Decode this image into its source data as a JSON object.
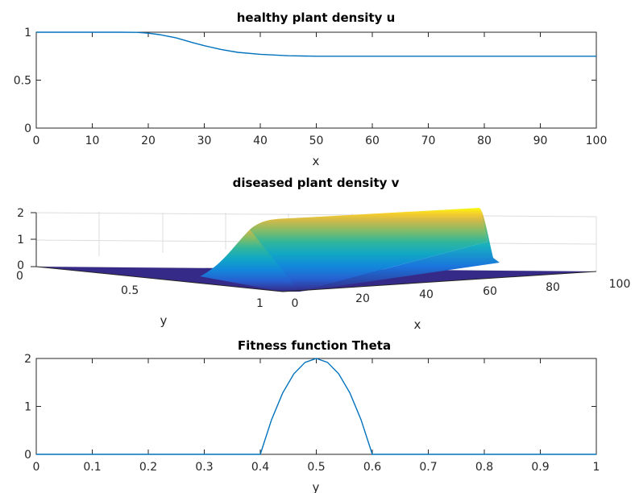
{
  "chart_data": [
    {
      "type": "line",
      "title": "healthy plant density u",
      "xlabel": "x",
      "ylabel": "",
      "xlim": [
        0,
        100
      ],
      "ylim": [
        0,
        1
      ],
      "xticks": [
        "0",
        "10",
        "20",
        "30",
        "40",
        "50",
        "60",
        "70",
        "80",
        "90",
        "100"
      ],
      "yticks": [
        "0",
        "0.5",
        "1"
      ],
      "series": [
        {
          "color": "#0072BD",
          "x": [
            0,
            5,
            10,
            15,
            18,
            20,
            22,
            25,
            28,
            30,
            33,
            36,
            40,
            45,
            50,
            55,
            60,
            70,
            80,
            90,
            100
          ],
          "y": [
            1.0,
            1.0,
            1.0,
            1.0,
            0.998,
            0.99,
            0.975,
            0.94,
            0.89,
            0.86,
            0.82,
            0.79,
            0.77,
            0.755,
            0.75,
            0.75,
            0.75,
            0.75,
            0.75,
            0.75,
            0.75
          ]
        }
      ]
    },
    {
      "type": "surface",
      "title": "diseased plant density v",
      "xlabel": "x",
      "ylabel": "y",
      "zlabel": "",
      "xlim": [
        0,
        100
      ],
      "ylim": [
        0,
        1
      ],
      "zlim": [
        0,
        2
      ],
      "xticks": [
        "0",
        "20",
        "40",
        "60",
        "80",
        "100"
      ],
      "yticks": [
        "0",
        "0.5",
        "1"
      ],
      "zticks": [
        "0",
        "1",
        "2"
      ],
      "colormap": "parula",
      "profile_x": [
        0,
        10,
        20,
        25,
        30,
        35,
        40,
        50,
        60,
        70,
        80,
        90,
        100
      ],
      "profile_v_at_y_0_5": [
        0,
        0,
        0.05,
        0.3,
        0.9,
        1.5,
        1.8,
        1.9,
        1.95,
        2.0,
        2.0,
        2.0,
        2.0
      ],
      "support_y": [
        0.4,
        0.6
      ]
    },
    {
      "type": "line",
      "title": "Fitness function Theta",
      "xlabel": "y",
      "ylabel": "",
      "xlim": [
        0,
        1
      ],
      "ylim": [
        0,
        2
      ],
      "xticks": [
        "0",
        "0.1",
        "0.2",
        "0.3",
        "0.4",
        "0.5",
        "0.6",
        "0.7",
        "0.8",
        "0.9",
        "1"
      ],
      "yticks": [
        "0",
        "1",
        "2"
      ],
      "series": [
        {
          "color": "#0072BD",
          "x": [
            0,
            0.1,
            0.2,
            0.3,
            0.4,
            0.42,
            0.44,
            0.46,
            0.48,
            0.5,
            0.52,
            0.54,
            0.56,
            0.58,
            0.6,
            0.7,
            0.8,
            0.9,
            1.0
          ],
          "y": [
            0,
            0,
            0,
            0,
            0,
            0.72,
            1.28,
            1.68,
            1.92,
            2.0,
            1.92,
            1.68,
            1.28,
            0.72,
            0,
            0,
            0,
            0,
            0
          ]
        }
      ]
    }
  ]
}
